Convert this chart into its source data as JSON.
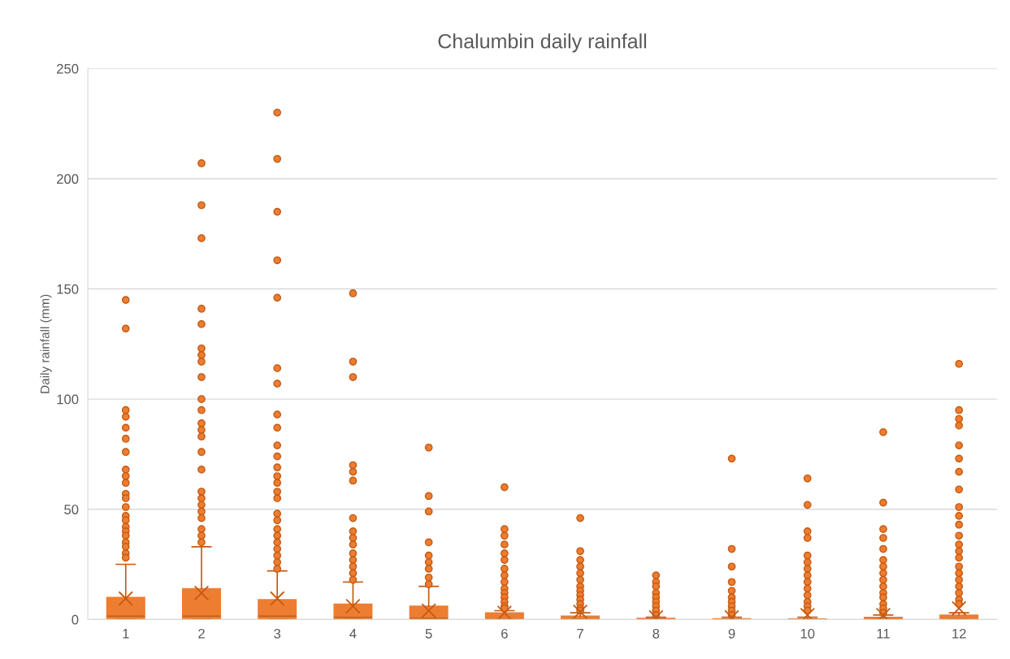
{
  "chart_data": {
    "type": "box",
    "title": "Chalumbin daily rainfall",
    "ylabel": "Daily rainfall (mm)",
    "categories": [
      "1",
      "2",
      "3",
      "4",
      "5",
      "6",
      "7",
      "8",
      "9",
      "10",
      "11",
      "12"
    ],
    "color": "#ed7d31",
    "boxes": [
      {
        "low": 0,
        "q1": 0,
        "median": 1.5,
        "q3": 10,
        "high": 25,
        "mean": 9.5,
        "outliers": [
          145,
          132,
          95,
          92,
          87,
          82,
          76,
          68,
          65,
          62,
          57,
          55,
          51,
          47,
          45,
          42,
          40,
          38,
          35,
          33,
          30,
          28
        ]
      },
      {
        "low": 0,
        "q1": 0,
        "median": 1.5,
        "q3": 14,
        "high": 33,
        "mean": 12,
        "outliers": [
          207,
          188,
          173,
          141,
          134,
          123,
          120,
          117,
          110,
          100,
          95,
          89,
          86,
          83,
          76,
          68,
          58,
          55,
          52,
          49,
          46,
          41,
          38,
          35
        ]
      },
      {
        "low": 0,
        "q1": 0,
        "median": 1.5,
        "q3": 9,
        "high": 22,
        "mean": 9.5,
        "outliers": [
          230,
          209,
          185,
          163,
          146,
          114,
          107,
          93,
          87,
          79,
          74,
          69,
          65,
          62,
          58,
          55,
          48,
          45,
          41,
          38,
          35,
          32,
          29,
          26,
          23
        ]
      },
      {
        "low": 0,
        "q1": 0,
        "median": 1,
        "q3": 7,
        "high": 17,
        "mean": 6,
        "outliers": [
          148,
          117,
          110,
          70,
          67,
          63,
          46,
          40,
          37,
          34,
          30,
          27,
          24,
          21,
          18
        ]
      },
      {
        "low": 0,
        "q1": 0,
        "median": 0.5,
        "q3": 6,
        "high": 15,
        "mean": 4,
        "outliers": [
          78,
          56,
          49,
          35,
          29,
          26,
          23,
          19,
          16
        ]
      },
      {
        "low": 0,
        "q1": 0,
        "median": 0,
        "q3": 3,
        "high": 4,
        "mean": 3,
        "outliers": [
          60,
          41,
          38,
          34,
          30,
          27,
          23,
          20,
          17,
          14,
          12,
          10,
          8,
          6,
          5
        ]
      },
      {
        "low": 0,
        "q1": 0,
        "median": 0,
        "q3": 1.5,
        "high": 3,
        "mean": 3.5,
        "outliers": [
          46,
          31,
          27,
          24,
          21,
          18,
          15,
          13,
          11,
          9,
          7,
          5,
          4
        ]
      },
      {
        "low": 0,
        "q1": 0,
        "median": 0,
        "q3": 0.5,
        "high": 1,
        "mean": 1,
        "outliers": [
          20,
          17,
          15,
          12,
          10,
          8,
          6,
          4,
          2
        ]
      },
      {
        "low": 0,
        "q1": 0,
        "median": 0,
        "q3": 0.3,
        "high": 1,
        "mean": 1,
        "outliers": [
          73,
          32,
          24,
          17,
          13,
          10,
          8,
          6,
          4,
          2
        ]
      },
      {
        "low": 0,
        "q1": 0,
        "median": 0,
        "q3": 0.2,
        "high": 1,
        "mean": 2,
        "outliers": [
          64,
          52,
          40,
          37,
          29,
          26,
          23,
          20,
          17,
          14,
          11,
          8,
          6,
          4
        ]
      },
      {
        "low": 0,
        "q1": 0,
        "median": 0,
        "q3": 1,
        "high": 2,
        "mean": 2,
        "outliers": [
          85,
          53,
          41,
          37,
          32,
          27,
          24,
          21,
          18,
          15,
          12,
          10,
          7,
          5,
          3
        ]
      },
      {
        "low": 0,
        "q1": 0,
        "median": 0,
        "q3": 2,
        "high": 3,
        "mean": 5,
        "outliers": [
          116,
          95,
          91,
          88,
          79,
          73,
          67,
          59,
          51,
          47,
          43,
          38,
          34,
          31,
          28,
          24,
          21,
          18,
          15,
          12,
          9,
          7
        ]
      }
    ],
    "ylim": [
      0,
      250
    ],
    "yticks": [
      0,
      50,
      100,
      150,
      200,
      250
    ],
    "grid": "y",
    "legend": false
  }
}
